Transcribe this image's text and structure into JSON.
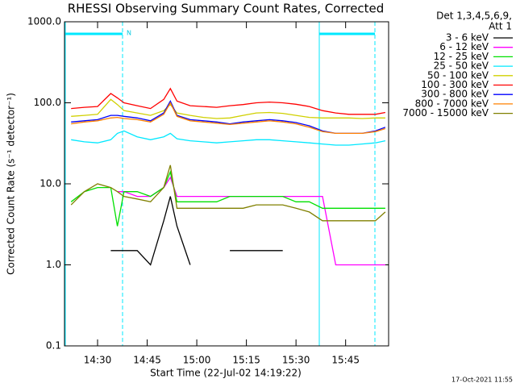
{
  "chart_data": {
    "type": "line",
    "title": "RHESSI Observing Summary Count Rates, Corrected",
    "xlabel": "Start Time (22-Jul-02 14:19:22)",
    "ylabel": "Corrected Count Rate (s⁻¹ detector⁻¹)",
    "legend_title": [
      "Det 1,3,4,5,6,9,",
      "Att 1"
    ],
    "annotation": "N",
    "timestamp": "17-Oct-2021 11:55",
    "ylog": true,
    "ylim": [
      0.1,
      1000
    ],
    "yticks": [
      0.1,
      {
        "value": 1,
        "label": "1.0"
      },
      {
        "value": 10,
        "label": "10.0"
      },
      {
        "value": 100,
        "label": "100.0"
      },
      {
        "value": 1000,
        "label": "1000.0"
      }
    ],
    "xlim": [
      "14:20",
      "15:58"
    ],
    "xticks": [
      "14:30",
      "14:45",
      "15:00",
      "15:15",
      "15:30",
      "15:45"
    ],
    "x": [
      "14:22",
      "14:26",
      "14:30",
      "14:34",
      "14:36",
      "14:38",
      "14:42",
      "14:46",
      "14:50",
      "14:52",
      "14:54",
      "14:58",
      "15:02",
      "15:06",
      "15:10",
      "15:14",
      "15:18",
      "15:22",
      "15:26",
      "15:30",
      "15:34",
      "15:38",
      "15:42",
      "15:46",
      "15:50",
      "15:54",
      "15:57"
    ],
    "series": [
      {
        "name": "3 - 6 keV",
        "color": "#000000",
        "values": [
          null,
          null,
          null,
          1.5,
          1.5,
          1.5,
          1.5,
          1,
          3.5,
          7,
          3,
          1,
          null,
          null,
          1.5,
          1.5,
          1.5,
          1.5,
          1.5,
          null,
          null,
          null,
          null,
          null,
          null,
          null,
          null
        ]
      },
      {
        "name": "6 - 12 keV",
        "color": "#ff00ff",
        "values": [
          null,
          null,
          null,
          null,
          8,
          8,
          7,
          7,
          9,
          12,
          7,
          7,
          7,
          7,
          7,
          7,
          7,
          7,
          7,
          7,
          7,
          7,
          1,
          1,
          1,
          1,
          1
        ]
      },
      {
        "name": "12 - 25 keV",
        "color": "#00e000",
        "values": [
          6,
          8,
          9,
          9,
          3,
          8,
          8,
          7,
          9,
          14,
          6,
          6,
          6,
          6,
          7,
          7,
          7,
          7,
          7,
          6,
          6,
          5,
          5,
          5,
          5,
          5,
          5
        ]
      },
      {
        "name": "25 - 50 keV",
        "color": "#00e8ff",
        "values": [
          35,
          33,
          32,
          35,
          42,
          45,
          38,
          35,
          38,
          42,
          36,
          34,
          33,
          32,
          33,
          34,
          35,
          35,
          34,
          33,
          32,
          31,
          30,
          30,
          31,
          32,
          34
        ]
      },
      {
        "name": "50 - 100 keV",
        "color": "#d0d000",
        "values": [
          68,
          70,
          72,
          110,
          95,
          80,
          75,
          70,
          80,
          95,
          75,
          70,
          66,
          64,
          65,
          70,
          75,
          76,
          74,
          70,
          66,
          65,
          65,
          65,
          64,
          65,
          65
        ]
      },
      {
        "name": "100 - 300 keV",
        "color": "#ff0000",
        "values": [
          85,
          88,
          90,
          130,
          115,
          100,
          92,
          85,
          110,
          150,
          105,
          92,
          90,
          88,
          92,
          95,
          100,
          102,
          100,
          96,
          90,
          80,
          75,
          72,
          72,
          72,
          76
        ]
      },
      {
        "name": "300 - 800 keV",
        "color": "#0000ff",
        "values": [
          58,
          60,
          62,
          70,
          70,
          68,
          65,
          60,
          75,
          105,
          70,
          62,
          60,
          58,
          55,
          58,
          60,
          62,
          60,
          57,
          52,
          45,
          42,
          42,
          42,
          45,
          50
        ]
      },
      {
        "name": "800 - 7000 keV",
        "color": "#ff8000",
        "values": [
          55,
          58,
          60,
          65,
          66,
          64,
          62,
          58,
          72,
          100,
          68,
          60,
          58,
          56,
          54,
          56,
          58,
          60,
          58,
          55,
          50,
          44,
          42,
          42,
          42,
          44,
          48
        ]
      },
      {
        "name": "7000 - 15000 keV",
        "color": "#808000",
        "values": [
          5.5,
          8,
          10,
          9,
          8,
          7,
          6.5,
          6,
          9,
          17,
          5,
          5,
          5,
          5,
          5,
          5,
          5.5,
          5.5,
          5.5,
          5,
          4.5,
          3.5,
          3.5,
          3.5,
          3.5,
          3.5,
          4.5
        ]
      }
    ]
  }
}
